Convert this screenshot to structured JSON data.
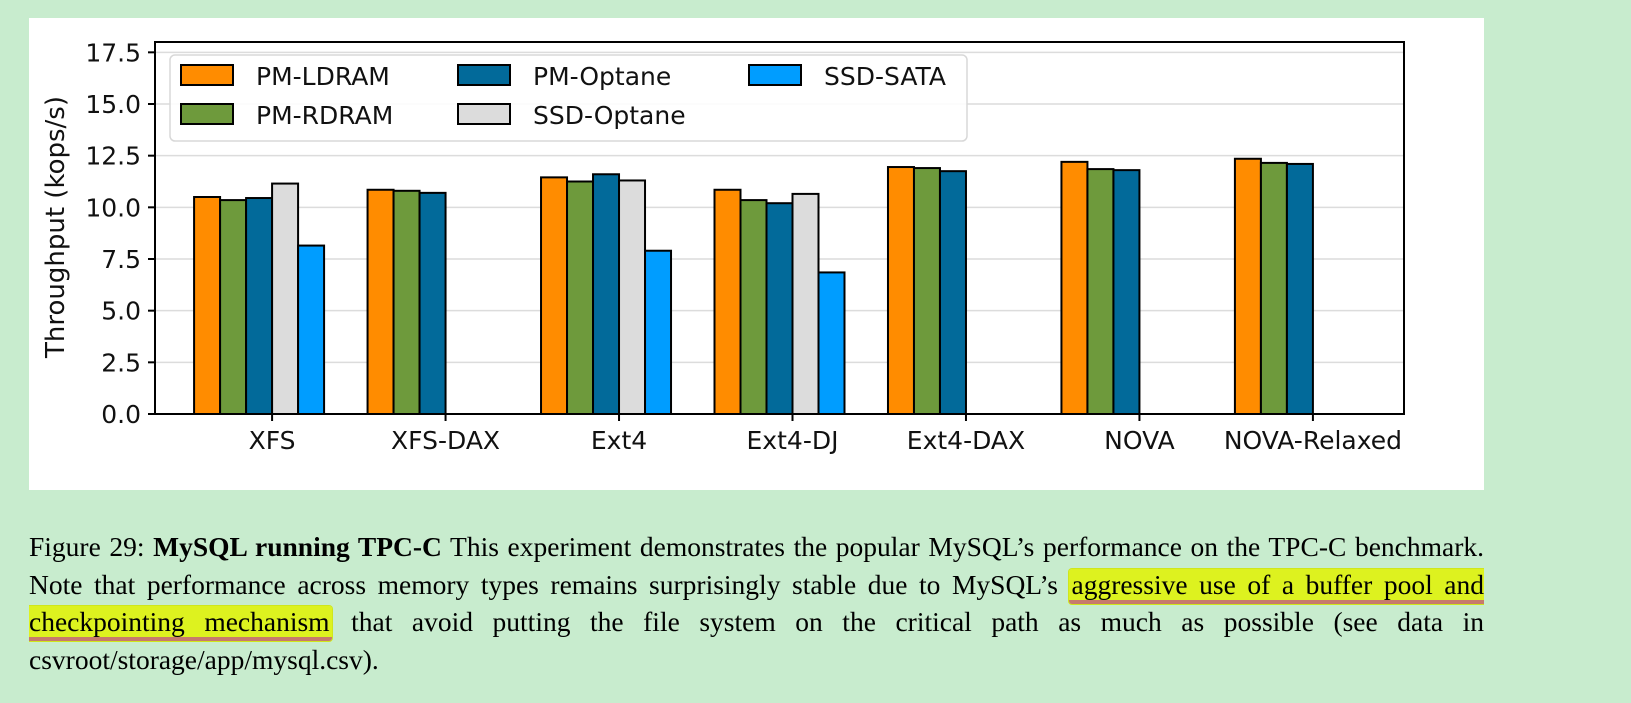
{
  "chart_data": {
    "type": "bar",
    "title": "",
    "xlabel": "",
    "ylabel": "Throughput (kops/s)",
    "ylim": [
      0,
      18
    ],
    "yticks": [
      "0.0",
      "2.5",
      "5.0",
      "7.5",
      "10.0",
      "12.5",
      "15.0",
      "17.5"
    ],
    "grid": true,
    "legend_position": "top-left",
    "categories": [
      "XFS",
      "XFS-DAX",
      "Ext4",
      "Ext4-DJ",
      "Ext4-DAX",
      "NOVA",
      "NOVA-Relaxed"
    ],
    "series": [
      {
        "name": "PM-LDRAM",
        "color": "#ff8c00",
        "values": [
          10.5,
          10.85,
          11.45,
          10.85,
          11.95,
          12.2,
          12.35
        ]
      },
      {
        "name": "PM-RDRAM",
        "color": "#6e9a3c",
        "values": [
          10.35,
          10.8,
          11.25,
          10.35,
          11.9,
          11.85,
          12.15
        ]
      },
      {
        "name": "PM-Optane",
        "color": "#026a9a",
        "values": [
          10.45,
          10.7,
          11.6,
          10.2,
          11.75,
          11.8,
          12.1
        ]
      },
      {
        "name": "SSD-Optane",
        "color": "#dcdcdc",
        "values": [
          11.15,
          0,
          11.3,
          10.65,
          0,
          0,
          0
        ]
      },
      {
        "name": "SSD-SATA",
        "color": "#009dff",
        "values": [
          8.15,
          0,
          7.9,
          6.85,
          0,
          0,
          0
        ]
      }
    ]
  },
  "caption": {
    "label": "Figure 29: ",
    "title": "MySQL running TPC-C",
    "text_before": " This experiment demonstrates the popular MySQL’s performance on the TPC-C benchmark. Note that performance across memory types remains surprisingly stable due to MySQL’s ",
    "highlight": "aggressive use of a buffer pool and checkpointing mechanism",
    "text_after": " that avoid putting the file system on the critical path as much as possible (see data in csvroot/storage/app/mysql.csv)."
  }
}
